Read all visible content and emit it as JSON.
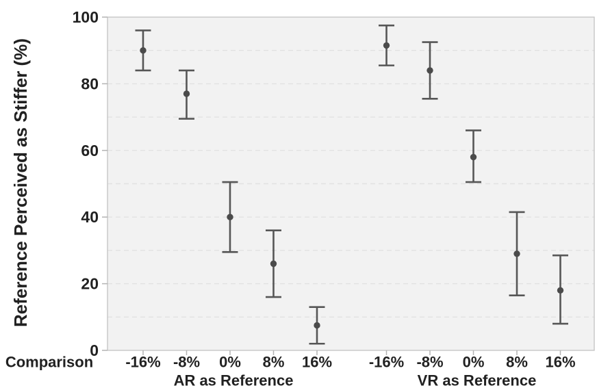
{
  "chart_data": {
    "type": "scatter",
    "title": "",
    "ylabel": "Reference Perceived as Stiffer (%)",
    "comparison_label": "Comparison",
    "ylim": [
      0,
      100
    ],
    "yticks": [
      0,
      20,
      40,
      60,
      80,
      100
    ],
    "grid": {
      "orientation": "horizontal",
      "step": 10,
      "style": "dashed",
      "visible": true
    },
    "legend_position": "none",
    "categories": [
      "-16%",
      "-8%",
      "0%",
      "8%",
      "16%"
    ],
    "series": [
      {
        "name": "AR as Reference",
        "means": [
          90,
          77,
          40,
          26,
          7.5
        ],
        "ci_low": [
          84,
          69.5,
          29.5,
          16,
          2
        ],
        "ci_high": [
          96,
          84,
          50.5,
          36,
          13
        ]
      },
      {
        "name": "VR as Reference",
        "means": [
          91.5,
          84,
          58,
          29,
          18
        ],
        "ci_low": [
          85.5,
          75.5,
          50.5,
          16.5,
          8
        ],
        "ci_high": [
          97.5,
          92.5,
          66,
          41.5,
          28.5
        ]
      }
    ],
    "colors": {
      "marker": "#4b4b4b",
      "error_bar": "#565656",
      "panel_bg": "#f2f2f2",
      "gridline": "#e1e1e1",
      "panel_border": "#c6c6c6",
      "tick_mark": "#b3b3b3",
      "text": "#212121"
    }
  }
}
